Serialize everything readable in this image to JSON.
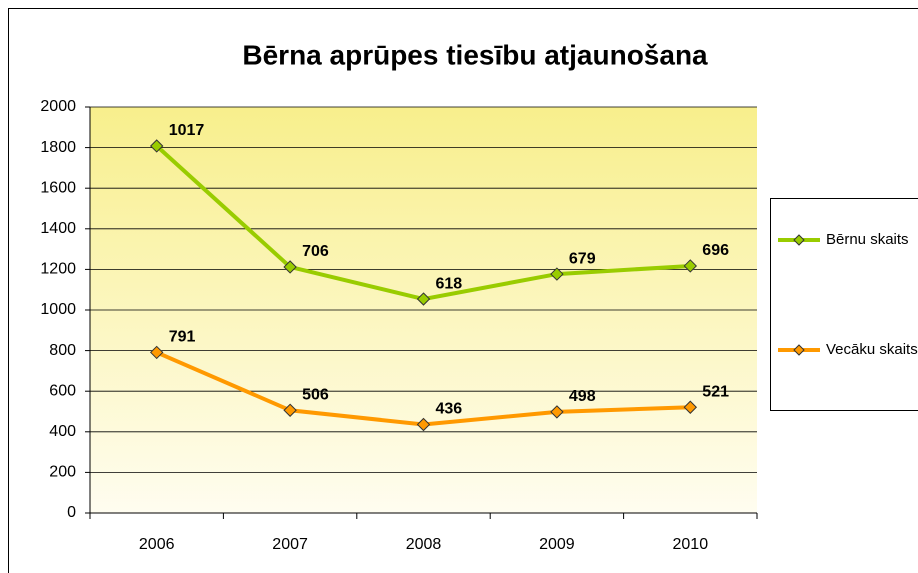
{
  "chart_data": {
    "type": "line",
    "stacked": true,
    "title": "Bērna aprūpes tiesību atjaunošana",
    "categories": [
      "2006",
      "2007",
      "2008",
      "2009",
      "2010"
    ],
    "series": [
      {
        "name": "Vecāku skaits",
        "color": "#ff9900",
        "values": [
          791,
          506,
          436,
          498,
          521
        ]
      },
      {
        "name": "Bērnu skaits",
        "color": "#99cc00",
        "values": [
          1017,
          706,
          618,
          679,
          696
        ]
      }
    ],
    "ylim": [
      0,
      2000
    ],
    "yticks": [
      0,
      200,
      400,
      600,
      800,
      1000,
      1200,
      1400,
      1600,
      1800,
      2000
    ],
    "grid": true,
    "legend": "right"
  }
}
